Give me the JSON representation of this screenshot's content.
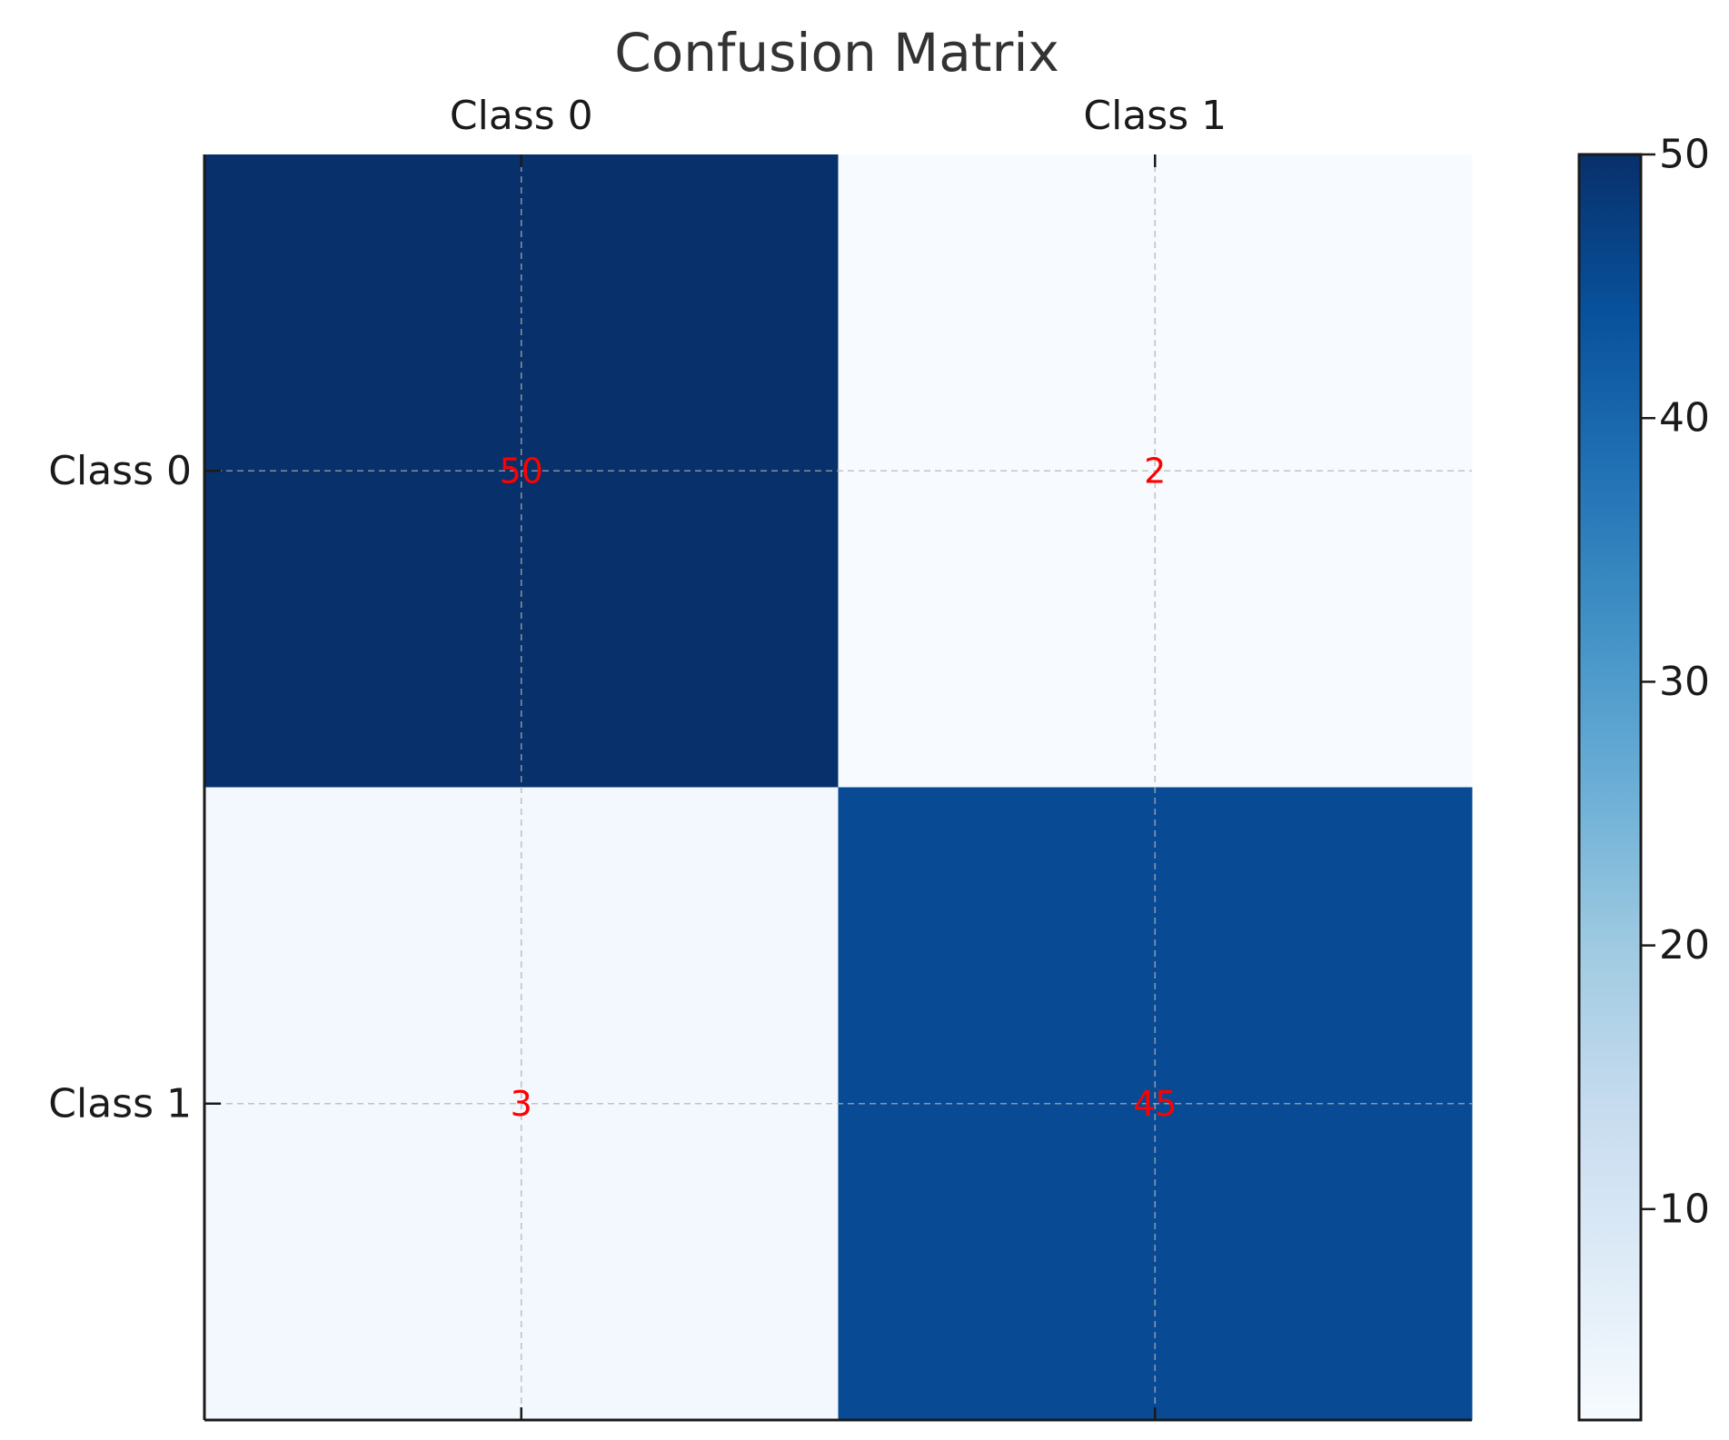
{
  "chart_data": {
    "type": "heatmap",
    "title": "Confusion Matrix",
    "x_categories": [
      "Class 0",
      "Class 1"
    ],
    "y_categories": [
      "Class 0",
      "Class 1"
    ],
    "values": [
      [
        50,
        2
      ],
      [
        3,
        45
      ]
    ],
    "x_tick_position": "top",
    "xlabel": "",
    "ylabel": "",
    "colormap": "Blues",
    "color_range": [
      2,
      50
    ],
    "colorbar_ticks": [
      10,
      20,
      30,
      40,
      50
    ],
    "grid": true,
    "annotation_color": "#ff0000"
  }
}
